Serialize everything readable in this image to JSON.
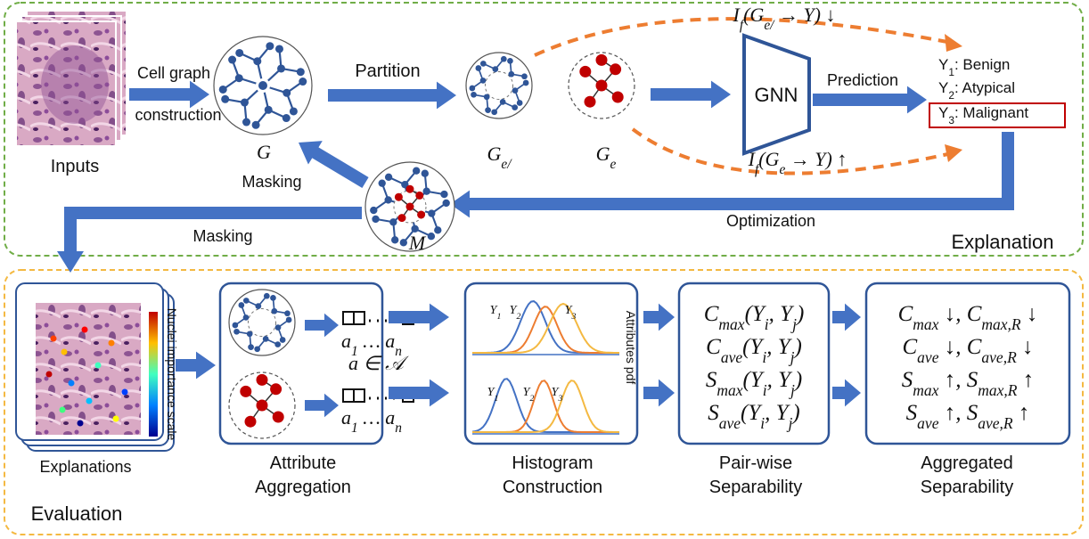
{
  "explanation_panel": {
    "title": "Explanation",
    "inputs": "Inputs",
    "cell_graph": [
      "Cell graph",
      "construction"
    ],
    "partition": "Partition",
    "graph": "G",
    "complement_graph": [
      "G",
      {
        "sub": "e/"
      }
    ],
    "explanation_graph": [
      "G",
      {
        "sub": "e"
      }
    ],
    "model": "GNN",
    "prediction": "Prediction",
    "classes": [
      [
        "Y",
        {
          "sub": "1"
        },
        ": Benign"
      ],
      [
        "Y",
        {
          "sub": "2"
        },
        ": Atypical"
      ],
      [
        "Y",
        {
          "sub": "3"
        },
        ": Malignant"
      ]
    ],
    "fidelity_complement": [
      "I",
      {
        "sub": "f"
      },
      "(G",
      {
        "sub": "e/"
      },
      " → Y) ↓"
    ],
    "fidelity_explanation": [
      "I",
      {
        "sub": "f"
      },
      "(G",
      {
        "sub": "e"
      },
      " → Y) ↑"
    ],
    "mask_graph": "M",
    "masking_graph": "Masking",
    "masking_input": "Masking",
    "optimization": "Optimization"
  },
  "evaluation_panel": {
    "title": "Evaluation",
    "explanations": "Explanations",
    "importance_scale": "Nuclei importance scale",
    "attribute_vector_top": [
      "a",
      {
        "sub": "1"
      },
      " … a",
      {
        "sub": "n"
      }
    ],
    "attribute_set": "a ∈ 𝒜",
    "attribute_vector_bottom": [
      "a",
      {
        "sub": "1"
      },
      " … a",
      {
        "sub": "n"
      }
    ],
    "attribute_aggregation": [
      "Attribute",
      "Aggregation"
    ],
    "histogram_top_labels": [
      [
        "Y",
        {
          "sub": "1"
        }
      ],
      [
        "Y",
        {
          "sub": "2"
        }
      ],
      [
        "Y",
        {
          "sub": "3"
        }
      ]
    ],
    "histogram_bottom_labels": [
      [
        "Y",
        {
          "sub": "1"
        }
      ],
      [
        "Y",
        {
          "sub": "2"
        }
      ],
      [
        "Y",
        {
          "sub": "3"
        }
      ]
    ],
    "attributes_pdf": "Attributes pdf",
    "histogram_construction": [
      "Histogram",
      "Construction"
    ],
    "pairwise_metrics": [
      [
        "C",
        {
          "sub": "max"
        },
        "(Y",
        {
          "sub": "i"
        },
        ", Y",
        {
          "sub": "j"
        },
        ")"
      ],
      [
        "C",
        {
          "sub": "ave"
        },
        "(Y",
        {
          "sub": "i"
        },
        ", Y",
        {
          "sub": "j"
        },
        ")"
      ],
      [
        "S",
        {
          "sub": "max"
        },
        "(Y",
        {
          "sub": "i"
        },
        ", Y",
        {
          "sub": "j"
        },
        ")"
      ],
      [
        "S",
        {
          "sub": "ave"
        },
        "(Y",
        {
          "sub": "i"
        },
        ", Y",
        {
          "sub": "j"
        },
        ")"
      ]
    ],
    "pairwise_separability": [
      "Pair-wise",
      "Separability"
    ],
    "aggregated_metrics": [
      [
        "C",
        {
          "sub": "max"
        },
        " ↓, C",
        {
          "sub": "max,R"
        },
        " ↓"
      ],
      [
        "C",
        {
          "sub": "ave"
        },
        " ↓, C",
        {
          "sub": "ave,R"
        },
        " ↓"
      ],
      [
        "S",
        {
          "sub": "max"
        },
        " ↑, S",
        {
          "sub": "max,R"
        },
        " ↑"
      ],
      [
        "S",
        {
          "sub": "ave"
        },
        " ↑, S",
        {
          "sub": "ave,R"
        },
        " ↑"
      ]
    ],
    "aggregated_separability": [
      "Aggregated",
      "Separability"
    ]
  }
}
